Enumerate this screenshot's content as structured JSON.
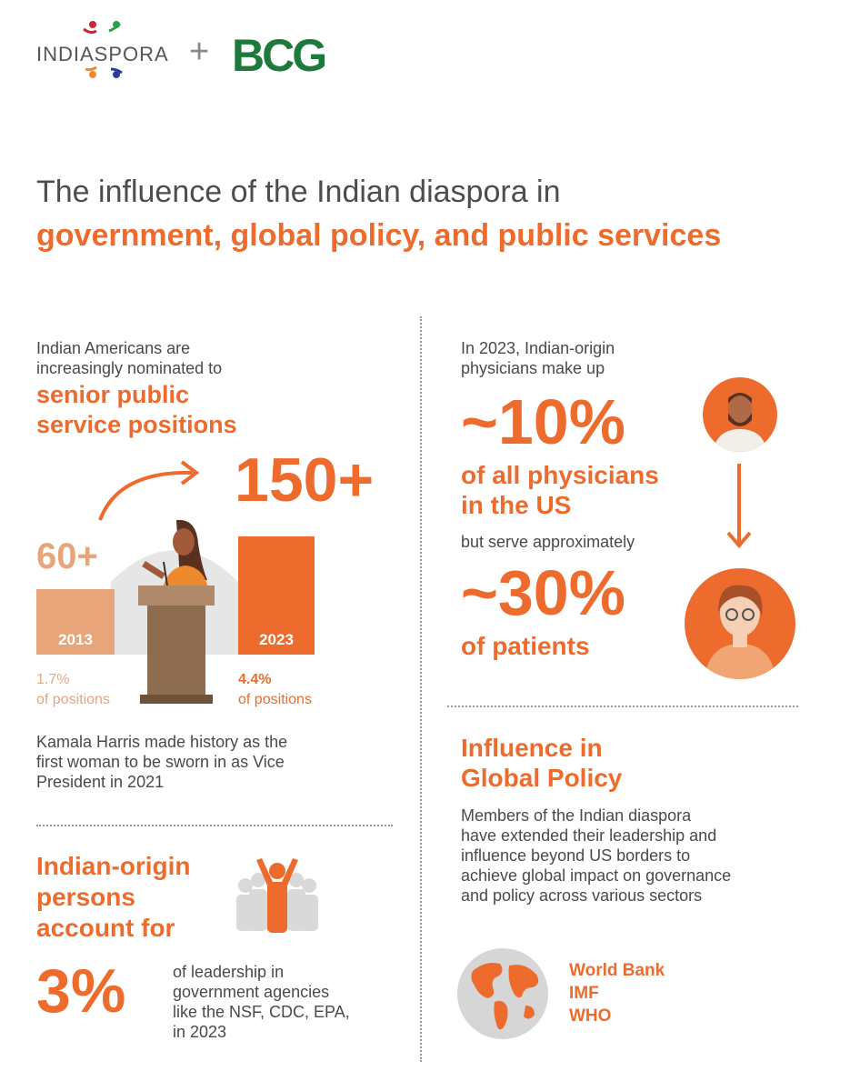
{
  "header": {
    "logo_indiaspora": "INDIASPORA",
    "plus": "+",
    "logo_bcg": "BCG"
  },
  "title": {
    "line1": "The influence of the Indian diaspora in",
    "line2": "government, global policy, and public services"
  },
  "colors": {
    "orange": "#ee6b2e",
    "light_orange": "#e8a57a",
    "bcg_green": "#1e7a3c"
  },
  "nominations": {
    "intro_line1": "Indian Americans are",
    "intro_line2": "increasingly nominated to",
    "highlight_line1": "senior public",
    "highlight_line2": "service positions",
    "value_2013": "60+",
    "value_2023": "150+",
    "year_2013": "2013",
    "year_2023": "2023",
    "pct_2013": "1.7%",
    "pct_2013_label": "of positions",
    "pct_2023": "4.4%",
    "pct_2023_label": "of positions",
    "note_line1": "Kamala Harris made history as the",
    "note_line2": "first woman to be sworn in as Vice",
    "note_line3": "President in 2021"
  },
  "leadership": {
    "heading_line1": "Indian-origin",
    "heading_line2": "persons",
    "heading_line3": "account for",
    "value": "3%",
    "desc_line1": "of leadership in",
    "desc_line2": "government agencies",
    "desc_line3": "like the NSF, CDC, EPA,",
    "desc_line4": "in 2023"
  },
  "physicians": {
    "intro_line1": "In 2023, Indian-origin",
    "intro_line2": "physicians make up",
    "value_physicians": "~10%",
    "phys_line1": "of all physicians",
    "phys_line2": "in the US",
    "connector": "but serve approximately",
    "value_patients": "~30%",
    "patients_label": "of patients"
  },
  "global_policy": {
    "heading_line1": "Influence in",
    "heading_line2": "Global Policy",
    "desc_line1": "Members of the Indian diaspora",
    "desc_line2": "have extended their leadership and",
    "desc_line3": "influence beyond US borders to",
    "desc_line4": "achieve global impact on governance",
    "desc_line5": "and policy across various sectors",
    "orgs": [
      "World Bank",
      "IMF",
      "WHO"
    ]
  }
}
